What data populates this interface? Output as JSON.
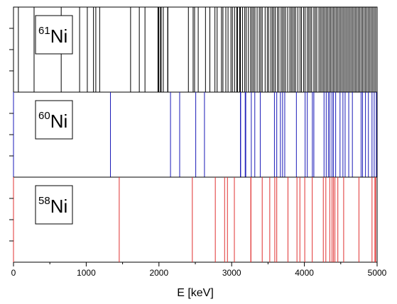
{
  "chart_data": {
    "type": "line",
    "xlabel": "E [keV]",
    "xlim": [
      0,
      5000
    ],
    "x_ticks": [
      "0",
      "1000",
      "2000",
      "3000",
      "4000",
      "5000"
    ],
    "panels": [
      {
        "label_mass": "61",
        "label_element": "Ni",
        "color": "#000000",
        "levels_keV": [
          0,
          67,
          283,
          656,
          909,
          1015,
          1100,
          1132,
          1185,
          1610,
          1730,
          1808,
          1986,
          1997,
          2019,
          2031,
          2060,
          2120,
          2123,
          2405,
          2470,
          2490,
          2540,
          2640,
          2700,
          2770,
          2800,
          2860,
          2880,
          2920,
          2950,
          2990,
          3010,
          3040,
          3070,
          3080,
          3110,
          3120,
          3150,
          3180,
          3200,
          3230,
          3260,
          3280,
          3300,
          3320,
          3350,
          3380,
          3400,
          3420,
          3460,
          3490,
          3510,
          3540,
          3560,
          3580,
          3600,
          3630,
          3650,
          3680,
          3700,
          3720,
          3740,
          3770,
          3800,
          3820,
          3840,
          3860,
          3880,
          3910,
          3940,
          3960,
          3990,
          4010,
          4040,
          4060,
          4080,
          4100,
          4130,
          4150,
          4170,
          4200,
          4220,
          4240,
          4260,
          4280,
          4300,
          4320,
          4340,
          4360,
          4380,
          4400,
          4420,
          4440,
          4460,
          4480,
          4500,
          4520,
          4540,
          4560,
          4580,
          4600,
          4620,
          4640,
          4660,
          4680,
          4700,
          4720,
          4740,
          4760,
          4780,
          4800,
          4820,
          4840,
          4860,
          4880,
          4900,
          4920,
          4940,
          4960,
          4980,
          5000
        ]
      },
      {
        "label_mass": "60",
        "label_element": "Ni",
        "color": "#1a1ab8",
        "levels_keV": [
          0,
          1333,
          2159,
          2285,
          2506,
          2626,
          3120,
          3124,
          3186,
          3194,
          3270,
          3318,
          3393,
          3588,
          3620,
          3670,
          3700,
          3730,
          3890,
          4010,
          4040,
          4110,
          4130,
          4270,
          4300,
          4330,
          4350,
          4380,
          4400,
          4430,
          4490,
          4530,
          4560,
          4610,
          4660,
          4780,
          4800,
          4840,
          4880,
          4930,
          4960,
          4990
        ]
      },
      {
        "label_mass": "58",
        "label_element": "Ni",
        "color": "#e03030",
        "levels_keV": [
          0,
          1454,
          2459,
          2775,
          2903,
          2942,
          3037,
          3263,
          3265,
          3420,
          3524,
          3593,
          3620,
          3774,
          3898,
          3938,
          4005,
          4108,
          4260,
          4295,
          4350,
          4380,
          4400,
          4420,
          4460,
          4540,
          4750,
          4930,
          4970,
          4980
        ]
      }
    ]
  }
}
